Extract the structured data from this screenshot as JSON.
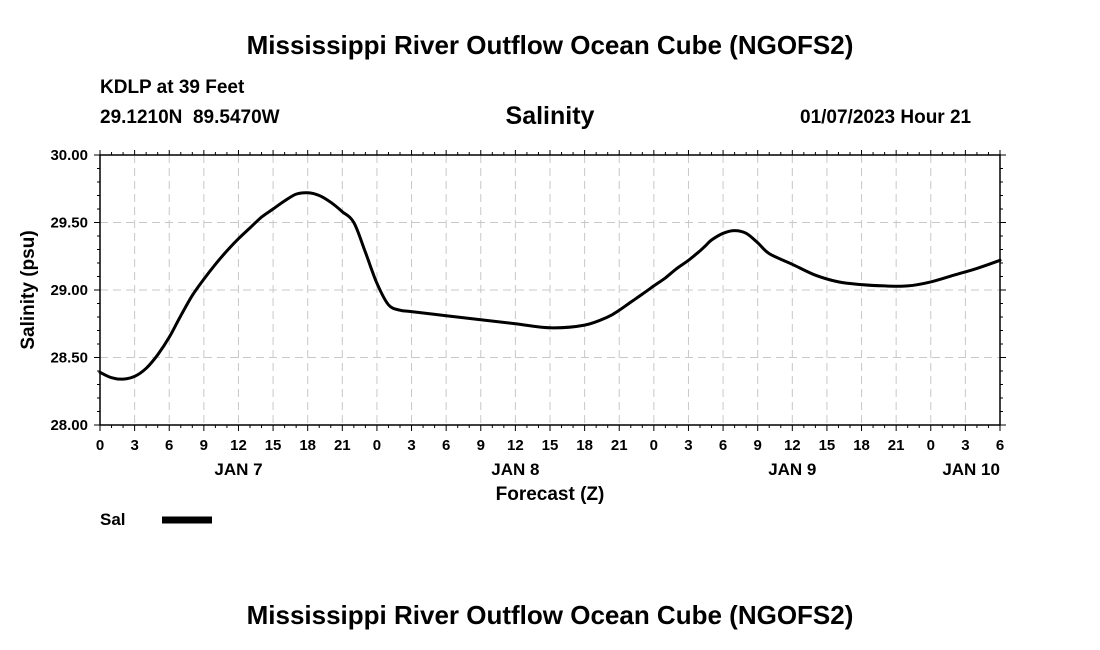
{
  "page_title": "Mississippi River Outflow Ocean Cube (NGOFS2)",
  "station": {
    "name": "KDLP at 39 Feet",
    "coords": "29.1210N  89.5470W",
    "valid_time": "01/07/2023 Hour 21"
  },
  "footer_title": "Mississippi River Outflow Ocean Cube (NGOFS2)",
  "chart_data": {
    "type": "line",
    "title": "Salinity",
    "xlabel": "Forecast (Z)",
    "ylabel": "Salinity (psu)",
    "ylim": [
      28.0,
      30.0
    ],
    "xlim": [
      0,
      78
    ],
    "x_unit": "hours since 01/07/2023 00Z",
    "y_ticks": [
      "28.00",
      "28.50",
      "29.00",
      "29.50",
      "30.00"
    ],
    "x_tick_labels": [
      "0",
      "3",
      "6",
      "9",
      "12",
      "15",
      "18",
      "21",
      "0",
      "3",
      "6",
      "9",
      "12",
      "15",
      "18",
      "21",
      "0",
      "3",
      "6",
      "9",
      "12",
      "15",
      "18",
      "21",
      "0",
      "3",
      "6"
    ],
    "day_labels": [
      {
        "label": "JAN 7",
        "x": 12
      },
      {
        "label": "JAN 8",
        "x": 36
      },
      {
        "label": "JAN 9",
        "x": 60
      },
      {
        "label": "JAN 10",
        "x": 75.5
      }
    ],
    "grid": true,
    "legend": {
      "position": "bottom-left",
      "entries": [
        {
          "name": "Sal"
        }
      ]
    },
    "series": [
      {
        "name": "Sal",
        "color": "#000000",
        "x": [
          0,
          1,
          2,
          3,
          4,
          5,
          6,
          7,
          8,
          9,
          10,
          11,
          12,
          13,
          14,
          15,
          16,
          17,
          18,
          19,
          20,
          21,
          22,
          23,
          24,
          25,
          26,
          27,
          30,
          33,
          36,
          39,
          42,
          44,
          45,
          46,
          47,
          48,
          49,
          50,
          51,
          52,
          52.5,
          53,
          54,
          55,
          56,
          57,
          58,
          60,
          62,
          64,
          66,
          68,
          70,
          72,
          74,
          76,
          78
        ],
        "y": [
          28.39,
          28.35,
          28.34,
          28.36,
          28.42,
          28.52,
          28.65,
          28.81,
          28.96,
          29.08,
          29.19,
          29.29,
          29.38,
          29.46,
          29.54,
          29.6,
          29.66,
          29.71,
          29.72,
          29.7,
          29.65,
          29.58,
          29.5,
          29.28,
          29.05,
          28.89,
          28.85,
          28.84,
          28.81,
          28.78,
          28.75,
          28.72,
          28.74,
          28.8,
          28.85,
          28.91,
          28.97,
          29.03,
          29.09,
          29.16,
          29.22,
          29.29,
          29.33,
          29.37,
          29.42,
          29.44,
          29.42,
          29.35,
          29.27,
          29.19,
          29.11,
          29.06,
          29.04,
          29.03,
          29.03,
          29.06,
          29.11,
          29.16,
          29.22
        ]
      }
    ]
  }
}
